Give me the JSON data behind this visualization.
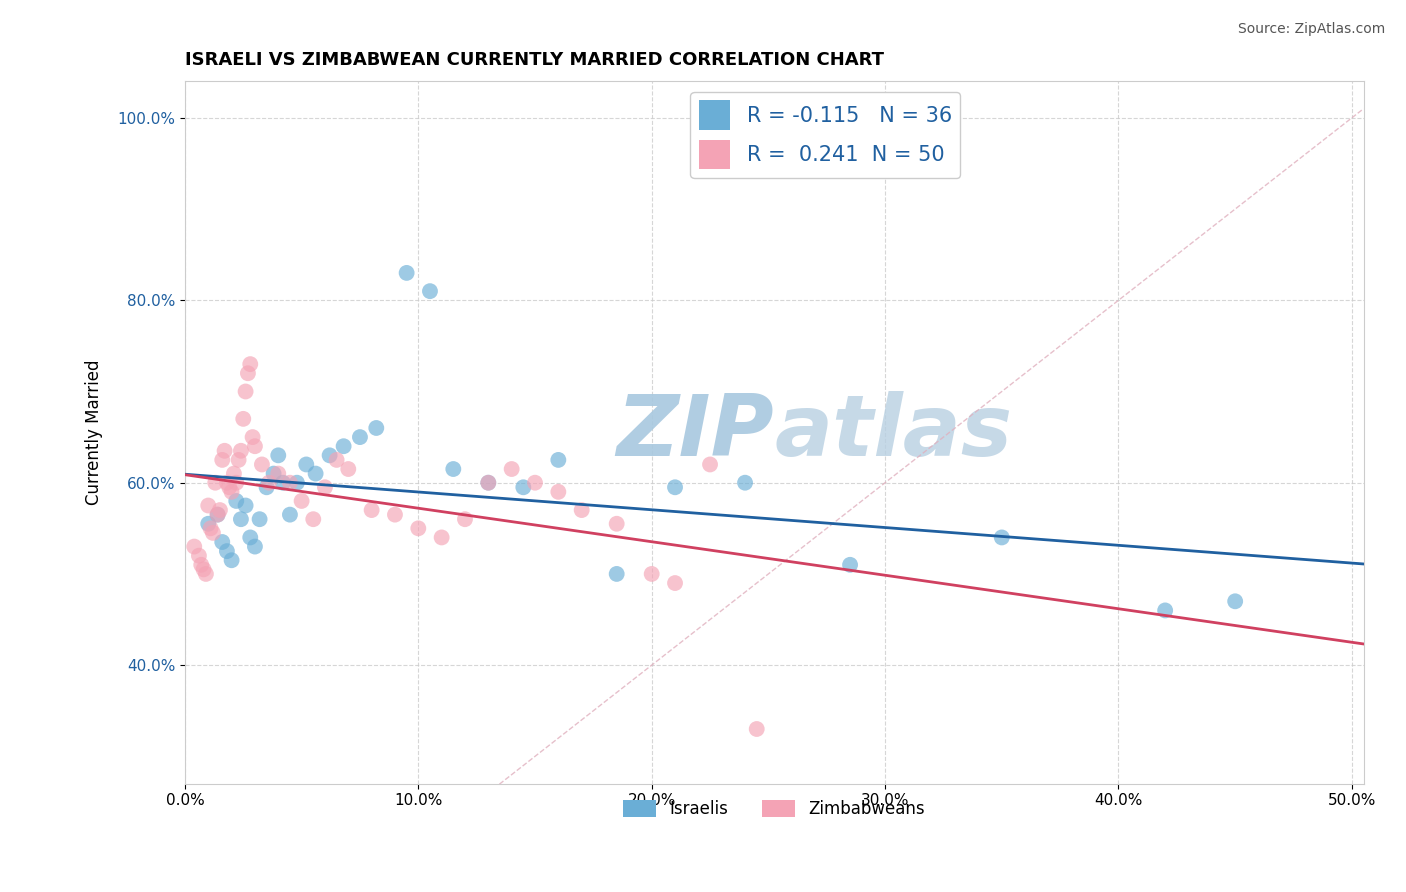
{
  "title": "ISRAELI VS ZIMBABWEAN CURRENTLY MARRIED CORRELATION CHART",
  "source": "Source: ZipAtlas.com",
  "ylabel": "Currently Married",
  "xlim": [
    0.0,
    0.505
  ],
  "ylim": [
    0.27,
    1.04
  ],
  "xticks": [
    0.0,
    0.1,
    0.2,
    0.3,
    0.4,
    0.5
  ],
  "xticklabels": [
    "0.0%",
    "10.0%",
    "20.0%",
    "30.0%",
    "40.0%",
    "50.0%"
  ],
  "yticks": [
    0.4,
    0.6,
    0.8,
    1.0
  ],
  "yticklabels": [
    "40.0%",
    "60.0%",
    "80.0%",
    "100.0%"
  ],
  "title_fontsize": 13,
  "israeli_color": "#6aaed6",
  "zimbabwean_color": "#f4a3b5",
  "israeli_R": -0.115,
  "israeli_N": 36,
  "zimbabwean_R": 0.241,
  "zimbabwean_N": 50,
  "watermark_zip_color": "#a8c8df",
  "watermark_atlas_color": "#b8d0e2",
  "trend_blue": "#2060a0",
  "trend_pink": "#d04060",
  "diag_color": "#e0b0be",
  "israeli_scatter_x": [
    0.01,
    0.014,
    0.016,
    0.018,
    0.02,
    0.022,
    0.024,
    0.026,
    0.028,
    0.03,
    0.032,
    0.035,
    0.038,
    0.04,
    0.042,
    0.045,
    0.048,
    0.052,
    0.056,
    0.062,
    0.068,
    0.075,
    0.082,
    0.095,
    0.105,
    0.115,
    0.13,
    0.145,
    0.16,
    0.185,
    0.21,
    0.24,
    0.285,
    0.35,
    0.42,
    0.45
  ],
  "israeli_scatter_y": [
    0.555,
    0.565,
    0.535,
    0.525,
    0.515,
    0.58,
    0.56,
    0.575,
    0.54,
    0.53,
    0.56,
    0.595,
    0.61,
    0.63,
    0.6,
    0.565,
    0.6,
    0.62,
    0.61,
    0.63,
    0.64,
    0.65,
    0.66,
    0.83,
    0.81,
    0.615,
    0.6,
    0.595,
    0.625,
    0.5,
    0.595,
    0.6,
    0.51,
    0.54,
    0.46,
    0.47
  ],
  "zimbabwean_scatter_x": [
    0.004,
    0.006,
    0.007,
    0.008,
    0.009,
    0.01,
    0.011,
    0.012,
    0.013,
    0.014,
    0.015,
    0.016,
    0.017,
    0.018,
    0.019,
    0.02,
    0.021,
    0.022,
    0.023,
    0.024,
    0.025,
    0.026,
    0.027,
    0.028,
    0.029,
    0.03,
    0.033,
    0.036,
    0.04,
    0.045,
    0.05,
    0.055,
    0.06,
    0.065,
    0.07,
    0.08,
    0.09,
    0.1,
    0.11,
    0.12,
    0.13,
    0.14,
    0.15,
    0.16,
    0.17,
    0.185,
    0.2,
    0.21,
    0.225,
    0.245
  ],
  "zimbabwean_scatter_y": [
    0.53,
    0.52,
    0.51,
    0.505,
    0.5,
    0.575,
    0.55,
    0.545,
    0.6,
    0.565,
    0.57,
    0.625,
    0.635,
    0.6,
    0.595,
    0.59,
    0.61,
    0.6,
    0.625,
    0.635,
    0.67,
    0.7,
    0.72,
    0.73,
    0.65,
    0.64,
    0.62,
    0.6,
    0.61,
    0.6,
    0.58,
    0.56,
    0.595,
    0.625,
    0.615,
    0.57,
    0.565,
    0.55,
    0.54,
    0.56,
    0.6,
    0.615,
    0.6,
    0.59,
    0.57,
    0.555,
    0.5,
    0.49,
    0.62,
    0.33
  ]
}
